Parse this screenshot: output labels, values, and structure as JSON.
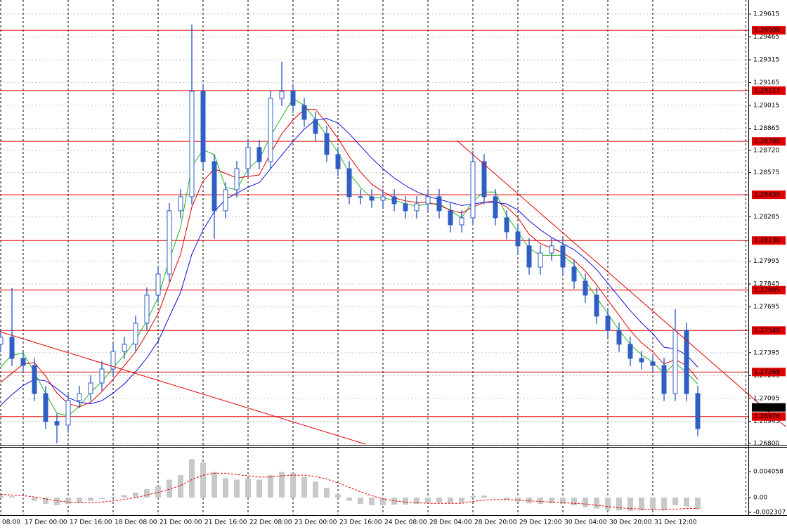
{
  "chart_data": [
    {
      "type": "candlestick",
      "categories": [
        "08:00",
        null,
        "17 Dec 00:00",
        null,
        null,
        null,
        "17 Dec 16:00",
        null,
        null,
        null,
        "18 Dec 08:00",
        null,
        null,
        null,
        "21 Dec 00:00",
        null,
        null,
        null,
        "21 Dec 16:00",
        null,
        null,
        null,
        "22 Dec 08:00",
        null,
        null,
        null,
        "23 Dec 00:00",
        null,
        null,
        null,
        "23 Dec 16:00",
        null,
        null,
        null,
        "24 Dec 08:00",
        null,
        null,
        null,
        "28 Dec 04:00",
        null,
        null,
        null,
        "28 Dec 20:00",
        null,
        null,
        null,
        "29 Dec 12:00",
        null,
        null,
        null,
        "30 Dec 04:00",
        null,
        null,
        null,
        "30 Dec 20:00",
        null,
        null,
        null,
        "31 Dec 12:00",
        null,
        null,
        null,
        null
      ],
      "open": [
        1.2745,
        1.27496,
        1.27357,
        1.27311,
        1.27127,
        1.26943,
        1.2692,
        1.27081,
        1.27127,
        1.27196,
        1.27288,
        1.27403,
        1.2745,
        1.27588,
        1.27772,
        1.2791,
        1.28325,
        1.28417,
        1.29108,
        1.28647,
        1.28325,
        1.28463,
        1.28601,
        1.2874,
        1.28647,
        1.29062,
        1.29108,
        1.29016,
        1.28924,
        1.28832,
        1.28694,
        1.28601,
        1.28417,
        1.28417,
        1.28394,
        1.28417,
        1.28371,
        1.28325,
        1.28371,
        1.28417,
        1.28325,
        1.28233,
        1.28279,
        1.28647,
        1.28417,
        1.28279,
        1.28187,
        1.28095,
        1.27956,
        1.28048,
        1.28095,
        1.27956,
        1.27864,
        1.27772,
        1.27634,
        1.27542,
        1.2745,
        1.27357,
        1.27334,
        1.27311,
        1.27127,
        1.27542,
        1.27127
      ],
      "high": [
        1.27546,
        1.27818,
        1.27407,
        1.27361,
        1.27177,
        1.26993,
        1.27131,
        1.27177,
        1.27246,
        1.27338,
        1.27453,
        1.275,
        1.27638,
        1.27822,
        1.2796,
        1.28375,
        1.28467,
        1.29546,
        1.29158,
        1.28697,
        1.28513,
        1.28651,
        1.2879,
        1.2879,
        1.29112,
        1.29302,
        1.29158,
        1.29066,
        1.28974,
        1.28882,
        1.28744,
        1.28651,
        1.28467,
        1.28467,
        1.28467,
        1.28467,
        1.28421,
        1.28421,
        1.28467,
        1.28467,
        1.28375,
        1.28329,
        1.28717,
        1.28697,
        1.28467,
        1.28329,
        1.28237,
        1.28145,
        1.28098,
        1.28145,
        1.28145,
        1.28006,
        1.27914,
        1.27822,
        1.27684,
        1.27592,
        1.275,
        1.27407,
        1.27384,
        1.27361,
        1.2768,
        1.27592,
        1.27177
      ],
      "low": [
        1.274,
        1.27307,
        1.27261,
        1.27077,
        1.26893,
        1.26804,
        1.2687,
        1.27031,
        1.27077,
        1.27146,
        1.27238,
        1.27353,
        1.274,
        1.27538,
        1.27722,
        1.2786,
        1.28275,
        1.28367,
        1.28597,
        1.28141,
        1.28275,
        1.28413,
        1.28551,
        1.28597,
        1.28597,
        1.29012,
        1.28966,
        1.28874,
        1.28782,
        1.28644,
        1.28551,
        1.28367,
        1.28367,
        1.28344,
        1.28344,
        1.28321,
        1.28275,
        1.28275,
        1.28321,
        1.28275,
        1.28183,
        1.28183,
        1.28229,
        1.28367,
        1.28229,
        1.28137,
        1.28045,
        1.27906,
        1.27906,
        1.27998,
        1.27906,
        1.27814,
        1.27722,
        1.27584,
        1.27492,
        1.274,
        1.27307,
        1.27284,
        1.27261,
        1.27077,
        1.27077,
        1.27077,
        1.26847
      ],
      "close": [
        1.27496,
        1.27357,
        1.27311,
        1.27127,
        1.26943,
        1.2692,
        1.27081,
        1.27127,
        1.27196,
        1.27288,
        1.27403,
        1.2745,
        1.27588,
        1.27772,
        1.2791,
        1.28325,
        1.28417,
        1.29108,
        1.28647,
        1.28325,
        1.28463,
        1.28601,
        1.2874,
        1.28647,
        1.29062,
        1.29108,
        1.29016,
        1.28924,
        1.28832,
        1.28694,
        1.28601,
        1.28417,
        1.28417,
        1.28394,
        1.28417,
        1.28371,
        1.28325,
        1.28371,
        1.28417,
        1.28325,
        1.28233,
        1.28279,
        1.28647,
        1.28417,
        1.28279,
        1.28187,
        1.28095,
        1.27956,
        1.28048,
        1.28095,
        1.27956,
        1.27864,
        1.27772,
        1.27634,
        1.27542,
        1.2745,
        1.27357,
        1.27334,
        1.27311,
        1.27127,
        1.27542,
        1.27127,
        1.26897
      ],
      "color": "#2f5fc4",
      "lines": [
        {
          "color": "#22b422",
          "values": [
            1.273,
            1.2738,
            1.2739,
            1.27265,
            1.27127,
            1.26997,
            1.26981,
            1.27043,
            1.27135,
            1.27204,
            1.27296,
            1.2738,
            1.2748,
            1.27603,
            1.27757,
            1.28002,
            1.28217,
            1.28617,
            1.28724,
            1.28693,
            1.28478,
            1.28463,
            1.28601,
            1.28663,
            1.28816,
            1.28939,
            1.29062,
            1.29016,
            1.28924,
            1.28817,
            1.28709,
            1.28571,
            1.28478,
            1.28409,
            1.28409,
            1.28394,
            1.28371,
            1.28356,
            1.28371,
            1.28371,
            1.28325,
            1.28279,
            1.28386,
            1.28448,
            1.28448,
            1.28294,
            1.28187,
            1.28079,
            1.28033,
            1.28033,
            1.28033,
            1.27972,
            1.27864,
            1.27757,
            1.27649,
            1.27542,
            1.2745,
            1.2738,
            1.27334,
            1.27257,
            1.27327,
            1.27265,
            1.27189
          ]
        },
        {
          "color": "#e00000",
          "values": [
            1.272,
            1.2726,
            1.2732,
            1.2733,
            1.2724,
            1.2713,
            1.2706,
            1.2704,
            1.2707,
            1.2714,
            1.2722,
            1.2731,
            1.274,
            1.2752,
            1.2765,
            1.2785,
            1.2804,
            1.2835,
            1.2852,
            1.286,
            1.2857,
            1.2854,
            1.2855,
            1.2856,
            1.287,
            1.2883,
            1.2892,
            1.2899,
            1.2899,
            1.289,
            1.288,
            1.2868,
            1.2858,
            1.285,
            1.2845,
            1.2841,
            1.2839,
            1.2838,
            1.2838,
            1.2836,
            1.2833,
            1.2831,
            1.2835,
            1.2838,
            1.2839,
            1.2835,
            1.2828,
            1.2817,
            1.2811,
            1.2808,
            1.2805,
            1.28,
            1.2793,
            1.2784,
            1.2774,
            1.2764,
            1.2754,
            1.2746,
            1.274,
            1.2732,
            1.2735,
            1.2731,
            1.2722
          ]
        },
        {
          "color": "#1010d8",
          "values": [
            1.2705,
            1.2712,
            1.2718,
            1.2722,
            1.2721,
            1.2716,
            1.271,
            1.2707,
            1.2706,
            1.2708,
            1.2713,
            1.2719,
            1.2727,
            1.2736,
            1.2747,
            1.2763,
            1.2779,
            1.2804,
            1.282,
            1.2832,
            1.284,
            1.2844,
            1.2848,
            1.2851,
            1.286,
            1.2869,
            1.2878,
            1.2886,
            1.2892,
            1.2893,
            1.289,
            1.2883,
            1.2875,
            1.2867,
            1.286,
            1.2854,
            1.2849,
            1.2845,
            1.2842,
            1.284,
            1.2838,
            1.2836,
            1.2837,
            1.2838,
            1.2838,
            1.2837,
            1.2833,
            1.2826,
            1.282,
            1.2815,
            1.2811,
            1.2807,
            1.2801,
            1.2794,
            1.2785,
            1.2776,
            1.2767,
            1.2759,
            1.2752,
            1.2743,
            1.2742,
            1.2738,
            1.273
          ]
        }
      ],
      "ylim": [
        1.26795,
        1.29693
      ],
      "yticks": [
        1.29615,
        1.29465,
        1.29315,
        1.29165,
        1.29015,
        1.28865,
        {
          "value": 1.2872,
          "label": "1.28720"
        },
        1.28575,
        1.28285,
        1.27995,
        1.27845,
        1.27695,
        1.27395,
        1.27245,
        1.27095,
        1.26945,
        {
          "value": 1.268,
          "label": "1.26800"
        }
      ],
      "grid": true,
      "level_color": "#e00000",
      "levels": [
        {
          "value": 1.29508,
          "label": "1.29508"
        },
        {
          "value": 1.29113,
          "label": "1.29113"
        },
        {
          "value": 1.2878,
          "label": "1.28780"
        },
        {
          "value": 1.2843,
          "label": "1.28430"
        },
        {
          "value": 1.2813,
          "label": "1.28130"
        },
        {
          "value": 1.27805,
          "label": "1.27805"
        },
        {
          "value": 1.2754,
          "label": "1.27540"
        },
        {
          "value": 1.27268,
          "label": "1.27268"
        },
        {
          "value": 1.26976,
          "label": "1.26976"
        }
      ],
      "current_price": 1.27036
    },
    {
      "type": "bar",
      "values": [
        0.0003,
        0.0002,
        0.0,
        -0.0005,
        -0.001,
        -0.0012,
        -0.001,
        -0.0008,
        -0.0005,
        -0.0002,
        0.0001,
        0.0004,
        0.0008,
        0.0013,
        0.0018,
        0.0028,
        0.0035,
        0.006,
        0.0055,
        0.004,
        0.003,
        0.0028,
        0.003,
        0.0028,
        0.0035,
        0.004,
        0.0038,
        0.0032,
        0.0025,
        0.0015,
        0.0005,
        -0.0005,
        -0.001,
        -0.0012,
        -0.0012,
        -0.0011,
        -0.0011,
        -0.001,
        -0.0008,
        -0.0008,
        -0.0009,
        -0.0008,
        0.0002,
        0.0003,
        0.0,
        -0.0003,
        -0.0006,
        -0.0009,
        -0.001,
        -0.0009,
        -0.001,
        -0.0012,
        -0.0015,
        -0.0017,
        -0.0019,
        -0.002,
        -0.0021,
        -0.002,
        -0.0019,
        -0.002,
        -0.0012,
        -0.0014,
        -0.0018
      ],
      "color": "#c8c8c8",
      "signal": {
        "color": "#e00000",
        "values": [
          0.0005,
          0.0004,
          0.0003,
          0.0001,
          -0.0002,
          -0.0005,
          -0.0007,
          -0.0008,
          -0.0008,
          -0.0007,
          -0.0005,
          -0.0003,
          0.0,
          0.0004,
          0.0008,
          0.0013,
          0.0019,
          0.0028,
          0.0035,
          0.0038,
          0.0038,
          0.0036,
          0.0034,
          0.0032,
          0.0032,
          0.0034,
          0.0035,
          0.0035,
          0.0033,
          0.0029,
          0.0023,
          0.0016,
          0.0009,
          0.0003,
          -0.0002,
          -0.0005,
          -0.0007,
          -0.0008,
          -0.0009,
          -0.0009,
          -0.0009,
          -0.0009,
          -0.0006,
          -0.0004,
          -0.0003,
          -0.0003,
          -0.0004,
          -0.0005,
          -0.0006,
          -0.0007,
          -0.0008,
          -0.0009,
          -0.001,
          -0.0012,
          -0.0014,
          -0.0016,
          -0.0017,
          -0.0018,
          -0.0019,
          -0.0019,
          -0.0018,
          -0.0017,
          -0.0017
        ]
      },
      "ylim": [
        -0.00263,
        0.0079
      ],
      "yticks": [
        0.004058,
        {
          "value": 0,
          "label": "0.00"
        },
        -0.002307
      ]
    }
  ]
}
